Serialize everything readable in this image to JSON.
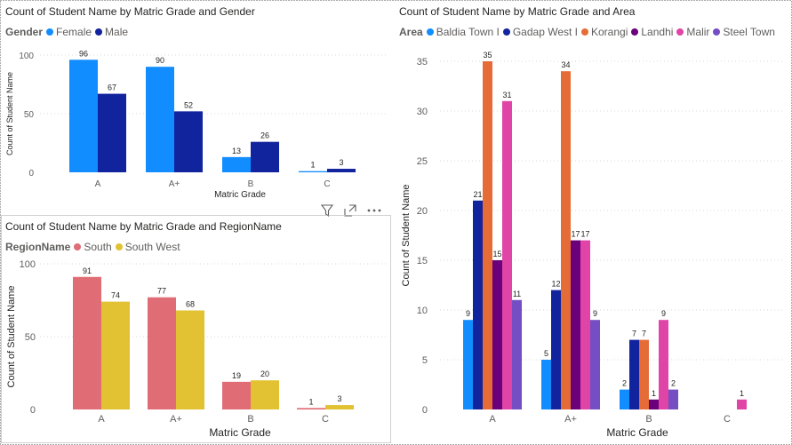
{
  "chart_data": [
    {
      "id": "gender",
      "type": "bar",
      "title": "Count of Student Name by Matric Grade and Gender",
      "legend_title": "Gender",
      "legend_position": "top-left",
      "xlabel": "Matric Grade",
      "ylabel": "Count of Student Name",
      "categories": [
        "A",
        "A+",
        "B",
        "C"
      ],
      "yticks": [
        0,
        50,
        100
      ],
      "ylim": [
        0,
        100
      ],
      "grid": true,
      "series": [
        {
          "name": "Female",
          "color": "#118DFF",
          "values": [
            96,
            90,
            13,
            1
          ]
        },
        {
          "name": "Male",
          "color": "#12239E",
          "values": [
            67,
            52,
            26,
            3
          ]
        }
      ]
    },
    {
      "id": "region",
      "type": "bar",
      "title": "Count of Student Name by Matric Grade and RegionName",
      "legend_title": "RegionName",
      "legend_position": "top-left",
      "xlabel": "Matric Grade",
      "ylabel": "Count of Student Name",
      "categories": [
        "A",
        "A+",
        "B",
        "C"
      ],
      "yticks": [
        0,
        50,
        100
      ],
      "ylim": [
        0,
        100
      ],
      "grid": true,
      "series": [
        {
          "name": "South",
          "color": "#E06C75",
          "values": [
            91,
            77,
            19,
            1
          ]
        },
        {
          "name": "South West",
          "color": "#E2C232",
          "values": [
            74,
            68,
            20,
            3
          ]
        }
      ]
    },
    {
      "id": "area",
      "type": "bar",
      "title": "Count of Student Name by Matric Grade and Area",
      "legend_title": "Area",
      "legend_position": "top-left",
      "xlabel": "Matric Grade",
      "ylabel": "Count of Student Name",
      "categories": [
        "A",
        "A+",
        "B",
        "C"
      ],
      "yticks": [
        0,
        5,
        10,
        15,
        20,
        25,
        30,
        35
      ],
      "ylim": [
        0,
        35
      ],
      "grid": true,
      "series": [
        {
          "name": "Baldia Town I",
          "color": "#118DFF",
          "values": [
            9,
            5,
            2,
            null
          ]
        },
        {
          "name": "Gadap West I",
          "color": "#12239E",
          "values": [
            21,
            12,
            7,
            null
          ]
        },
        {
          "name": "Korangi",
          "color": "#E66C37",
          "values": [
            35,
            34,
            7,
            null
          ]
        },
        {
          "name": "Landhi",
          "color": "#6B007B",
          "values": [
            15,
            17,
            1,
            null
          ]
        },
        {
          "name": "Malir",
          "color": "#E044A7",
          "values": [
            31,
            17,
            9,
            1
          ]
        },
        {
          "name": "Steel Town",
          "color": "#744EC2",
          "values": [
            11,
            9,
            2,
            null
          ]
        }
      ]
    }
  ],
  "visual_header": {
    "icons": [
      "filter-icon",
      "focus-mode-icon",
      "more-options-icon"
    ]
  }
}
